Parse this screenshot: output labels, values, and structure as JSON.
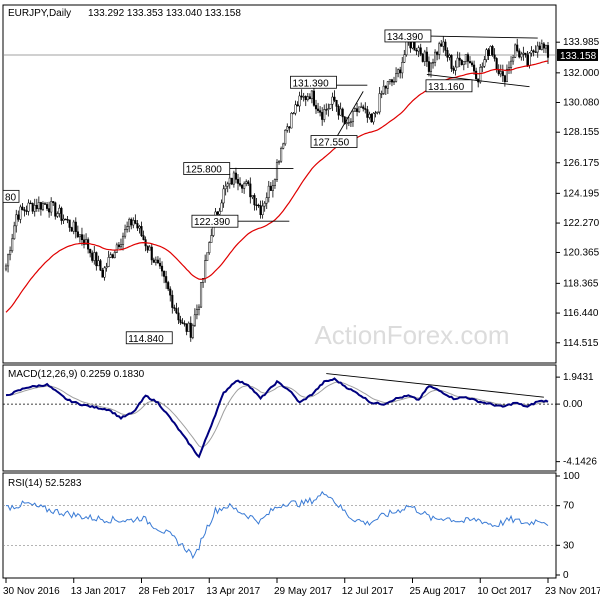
{
  "header": {
    "symbol": "EURJPY,Daily",
    "ohlc": "133.292 133.353 133.040 133.158"
  },
  "watermark": "ActionForex.com",
  "colors": {
    "candle": "#000000",
    "ma": "#e00000",
    "macd": "#00007f",
    "signal": "#a0a0a0",
    "rsi": "#3a7bd5",
    "price_line": "#808080",
    "trend": "#000000",
    "watermark": "#dcdcdc"
  },
  "chart_data": [
    {
      "type": "candlestick",
      "title": "EURJPY,Daily",
      "x_ticks": [
        "30 Nov 2016",
        "13 Jan 2017",
        "28 Feb 2017",
        "13 Apr 2017",
        "29 May 2017",
        "12 Jul 2017",
        "25 Aug 2017",
        "10 Oct 2017",
        "23 Nov 2017"
      ],
      "y_ticks": [
        "133.985",
        "132.000",
        "130.080",
        "128.155",
        "126.175",
        "124.195",
        "122.270",
        "120.365",
        "118.365",
        "116.440",
        "114.515"
      ],
      "ylim": [
        113.4,
        136.2
      ],
      "current_price": "133.158",
      "price_anchors": [
        {
          "i": 0,
          "p": 119.5
        },
        {
          "i": 5,
          "p": 122.8
        },
        {
          "i": 12,
          "p": 123.4
        },
        {
          "i": 20,
          "p": 123.5
        },
        {
          "i": 28,
          "p": 122.6
        },
        {
          "i": 38,
          "p": 121.2
        },
        {
          "i": 47,
          "p": 119.0
        },
        {
          "i": 54,
          "p": 120.9
        },
        {
          "i": 62,
          "p": 122.5
        },
        {
          "i": 70,
          "p": 120.5
        },
        {
          "i": 78,
          "p": 118.2
        },
        {
          "i": 86,
          "p": 115.6
        },
        {
          "i": 90,
          "p": 115.3
        },
        {
          "i": 94,
          "p": 117.2
        },
        {
          "i": 100,
          "p": 121.8
        },
        {
          "i": 106,
          "p": 124.3
        },
        {
          "i": 112,
          "p": 125.4
        },
        {
          "i": 118,
          "p": 124.5
        },
        {
          "i": 124,
          "p": 123.2
        },
        {
          "i": 130,
          "p": 125.0
        },
        {
          "i": 136,
          "p": 128.3
        },
        {
          "i": 142,
          "p": 130.0
        },
        {
          "i": 148,
          "p": 130.7
        },
        {
          "i": 154,
          "p": 129.4
        },
        {
          "i": 160,
          "p": 130.2
        },
        {
          "i": 166,
          "p": 128.4
        },
        {
          "i": 172,
          "p": 129.8
        },
        {
          "i": 178,
          "p": 128.7
        },
        {
          "i": 184,
          "p": 131.0
        },
        {
          "i": 190,
          "p": 131.6
        },
        {
          "i": 196,
          "p": 134.0
        },
        {
          "i": 201,
          "p": 133.6
        },
        {
          "i": 206,
          "p": 132.5
        },
        {
          "i": 212,
          "p": 133.9
        },
        {
          "i": 218,
          "p": 132.3
        },
        {
          "i": 224,
          "p": 133.2
        },
        {
          "i": 230,
          "p": 131.8
        },
        {
          "i": 236,
          "p": 133.8
        },
        {
          "i": 242,
          "p": 131.5
        },
        {
          "i": 248,
          "p": 133.6
        },
        {
          "i": 254,
          "p": 132.6
        },
        {
          "i": 259,
          "p": 134.0
        },
        {
          "i": 264,
          "p": 133.2
        }
      ],
      "labels": [
        {
          "text": "134.390",
          "i": 206,
          "p": 134.39
        },
        {
          "text": "131.390",
          "i": 160,
          "p": 131.39
        },
        {
          "text": "127.550",
          "i": 170,
          "p": 127.55
        },
        {
          "text": "125.800",
          "i": 108,
          "p": 125.8
        },
        {
          "text": "122.390",
          "i": 112,
          "p": 122.39
        },
        {
          "text": "114.840",
          "i": 80,
          "p": 114.84
        },
        {
          "text": "131.160",
          "i": 226,
          "p": 131.16
        },
        {
          "text": "80",
          "i": 0,
          "p": 124.0
        }
      ]
    },
    {
      "type": "line",
      "title": "MACD(12,26,9) 0.2259 0.1830",
      "y_ticks": [
        "1.9431",
        "0.00",
        "-4.1426"
      ],
      "ylim": [
        -4.6,
        2.6
      ],
      "macd_anchors": [
        {
          "i": 0,
          "v": 0.6
        },
        {
          "i": 10,
          "v": 1.2
        },
        {
          "i": 20,
          "v": 1.4
        },
        {
          "i": 30,
          "v": 0.3
        },
        {
          "i": 36,
          "v": 0.0
        },
        {
          "i": 42,
          "v": -0.2
        },
        {
          "i": 50,
          "v": -0.4
        },
        {
          "i": 56,
          "v": -1.0
        },
        {
          "i": 62,
          "v": -0.6
        },
        {
          "i": 68,
          "v": 0.6
        },
        {
          "i": 74,
          "v": 0.1
        },
        {
          "i": 80,
          "v": -1.0
        },
        {
          "i": 88,
          "v": -2.6
        },
        {
          "i": 94,
          "v": -3.8
        },
        {
          "i": 100,
          "v": -1.5
        },
        {
          "i": 106,
          "v": 0.8
        },
        {
          "i": 112,
          "v": 1.7
        },
        {
          "i": 118,
          "v": 1.4
        },
        {
          "i": 124,
          "v": 0.4
        },
        {
          "i": 132,
          "v": 1.6
        },
        {
          "i": 138,
          "v": 1.0
        },
        {
          "i": 143,
          "v": 0.1
        },
        {
          "i": 149,
          "v": 0.7
        },
        {
          "i": 155,
          "v": 1.6
        },
        {
          "i": 160,
          "v": 1.8
        },
        {
          "i": 166,
          "v": 1.2
        },
        {
          "i": 172,
          "v": 0.7
        },
        {
          "i": 178,
          "v": 0.1
        },
        {
          "i": 184,
          "v": 0.0
        },
        {
          "i": 190,
          "v": 0.4
        },
        {
          "i": 196,
          "v": 0.6
        },
        {
          "i": 201,
          "v": 0.3
        },
        {
          "i": 206,
          "v": 1.3
        },
        {
          "i": 212,
          "v": 0.9
        },
        {
          "i": 218,
          "v": 0.4
        },
        {
          "i": 224,
          "v": 0.5
        },
        {
          "i": 230,
          "v": 0.2
        },
        {
          "i": 236,
          "v": 0.0
        },
        {
          "i": 242,
          "v": -0.2
        },
        {
          "i": 248,
          "v": 0.1
        },
        {
          "i": 254,
          "v": -0.2
        },
        {
          "i": 259,
          "v": 0.2
        },
        {
          "i": 264,
          "v": 0.23
        }
      ]
    },
    {
      "type": "line",
      "title": "RSI(14) 52.5283",
      "y_ticks": [
        "100",
        "70",
        "30",
        "0"
      ],
      "ylim": [
        0,
        100
      ],
      "rsi_anchors": [
        {
          "i": 0,
          "v": 68
        },
        {
          "i": 10,
          "v": 72
        },
        {
          "i": 20,
          "v": 66
        },
        {
          "i": 30,
          "v": 62
        },
        {
          "i": 40,
          "v": 58
        },
        {
          "i": 50,
          "v": 56
        },
        {
          "i": 60,
          "v": 55
        },
        {
          "i": 66,
          "v": 58
        },
        {
          "i": 72,
          "v": 50
        },
        {
          "i": 80,
          "v": 40
        },
        {
          "i": 88,
          "v": 26
        },
        {
          "i": 92,
          "v": 18
        },
        {
          "i": 96,
          "v": 40
        },
        {
          "i": 102,
          "v": 65
        },
        {
          "i": 108,
          "v": 70
        },
        {
          "i": 116,
          "v": 62
        },
        {
          "i": 124,
          "v": 54
        },
        {
          "i": 130,
          "v": 66
        },
        {
          "i": 136,
          "v": 73
        },
        {
          "i": 144,
          "v": 72
        },
        {
          "i": 150,
          "v": 76
        },
        {
          "i": 156,
          "v": 84
        },
        {
          "i": 162,
          "v": 70
        },
        {
          "i": 168,
          "v": 58
        },
        {
          "i": 176,
          "v": 52
        },
        {
          "i": 184,
          "v": 60
        },
        {
          "i": 190,
          "v": 64
        },
        {
          "i": 196,
          "v": 70
        },
        {
          "i": 202,
          "v": 64
        },
        {
          "i": 208,
          "v": 56
        },
        {
          "i": 214,
          "v": 58
        },
        {
          "i": 222,
          "v": 54
        },
        {
          "i": 230,
          "v": 56
        },
        {
          "i": 238,
          "v": 50
        },
        {
          "i": 246,
          "v": 56
        },
        {
          "i": 254,
          "v": 52
        },
        {
          "i": 260,
          "v": 56
        },
        {
          "i": 264,
          "v": 52.5
        }
      ]
    }
  ]
}
